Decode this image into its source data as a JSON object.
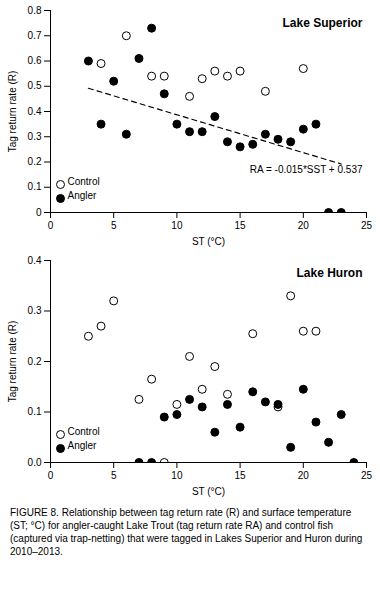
{
  "chart_data": [
    {
      "type": "scatter",
      "title": "Lake Superior",
      "x_label": "ST (°C)",
      "y_label": "Tag return rate (R)",
      "xlim": [
        0,
        25
      ],
      "xticks": [
        0,
        5,
        10,
        15,
        20,
        25
      ],
      "ylim": [
        0,
        0.8
      ],
      "yticks": [
        0,
        0.1,
        0.2,
        0.3,
        0.4,
        0.5,
        0.6,
        0.7,
        0.8
      ],
      "grid": false,
      "legend": "bottom-left",
      "annotation": "RA = -0.015*SST + 0.537",
      "series": [
        {
          "name": "Control",
          "type": "scatter",
          "marker": "circle-open",
          "color": "#000000",
          "x": [
            4,
            6,
            8,
            9,
            11,
            12,
            13,
            14,
            15,
            17,
            20
          ],
          "values": [
            0.59,
            0.7,
            0.54,
            0.54,
            0.46,
            0.53,
            0.56,
            0.54,
            0.56,
            0.48,
            0.57
          ]
        },
        {
          "name": "Angler",
          "type": "scatter",
          "marker": "circle",
          "color": "#000000",
          "x": [
            3,
            4,
            5,
            6,
            7,
            8,
            9,
            10,
            11,
            12,
            13,
            14,
            15,
            16,
            17,
            18,
            19,
            20,
            21,
            22,
            23
          ],
          "values": [
            0.6,
            0.35,
            0.52,
            0.31,
            0.61,
            0.73,
            0.47,
            0.35,
            0.32,
            0.32,
            0.38,
            0.28,
            0.26,
            0.27,
            0.31,
            0.29,
            0.28,
            0.33,
            0.35,
            0.0,
            0.0
          ]
        },
        {
          "type": "line",
          "line_style": "dashed",
          "color": "#000000",
          "x": [
            3,
            23
          ],
          "values": [
            0.492,
            0.192
          ]
        }
      ]
    },
    {
      "type": "scatter",
      "title": "Lake Huron",
      "x_label": "ST (°C)",
      "y_label": "Tag return rate (R)",
      "xlim": [
        0,
        25
      ],
      "xticks": [
        0,
        5,
        10,
        15,
        20,
        25
      ],
      "ylim": [
        0,
        0.4
      ],
      "yticks": [
        {
          "value": 0,
          "label": "0.0"
        },
        0.1,
        0.2,
        0.3,
        0.4
      ],
      "grid": false,
      "legend": "bottom-left",
      "series": [
        {
          "name": "Control",
          "type": "scatter",
          "marker": "circle-open",
          "color": "#000000",
          "x": [
            3,
            4,
            5,
            7,
            8,
            9,
            10,
            11,
            12,
            13,
            14,
            16,
            18,
            19,
            20,
            21
          ],
          "values": [
            0.25,
            0.27,
            0.32,
            0.125,
            0.165,
            0.0,
            0.115,
            0.21,
            0.145,
            0.19,
            0.135,
            0.255,
            0.11,
            0.33,
            0.26,
            0.26
          ]
        },
        {
          "name": "Angler",
          "type": "scatter",
          "marker": "circle",
          "color": "#000000",
          "x": [
            7,
            8,
            9,
            10,
            11,
            12,
            13,
            14,
            15,
            16,
            17,
            18,
            19,
            20,
            21,
            22,
            23,
            24
          ],
          "values": [
            0.0,
            0.0,
            0.09,
            0.095,
            0.125,
            0.11,
            0.06,
            0.115,
            0.07,
            0.14,
            0.12,
            0.115,
            0.03,
            0.145,
            0.08,
            0.04,
            0.095,
            0.0
          ]
        }
      ]
    }
  ],
  "caption": "FIGURE 8. Relationship between tag return rate (R) and surface temperature (ST; °C) for angler-caught Lake Trout (tag return rate RA) and control fish (captured via trap-netting) that were tagged in Lakes Superior and Huron during 2010–2013."
}
